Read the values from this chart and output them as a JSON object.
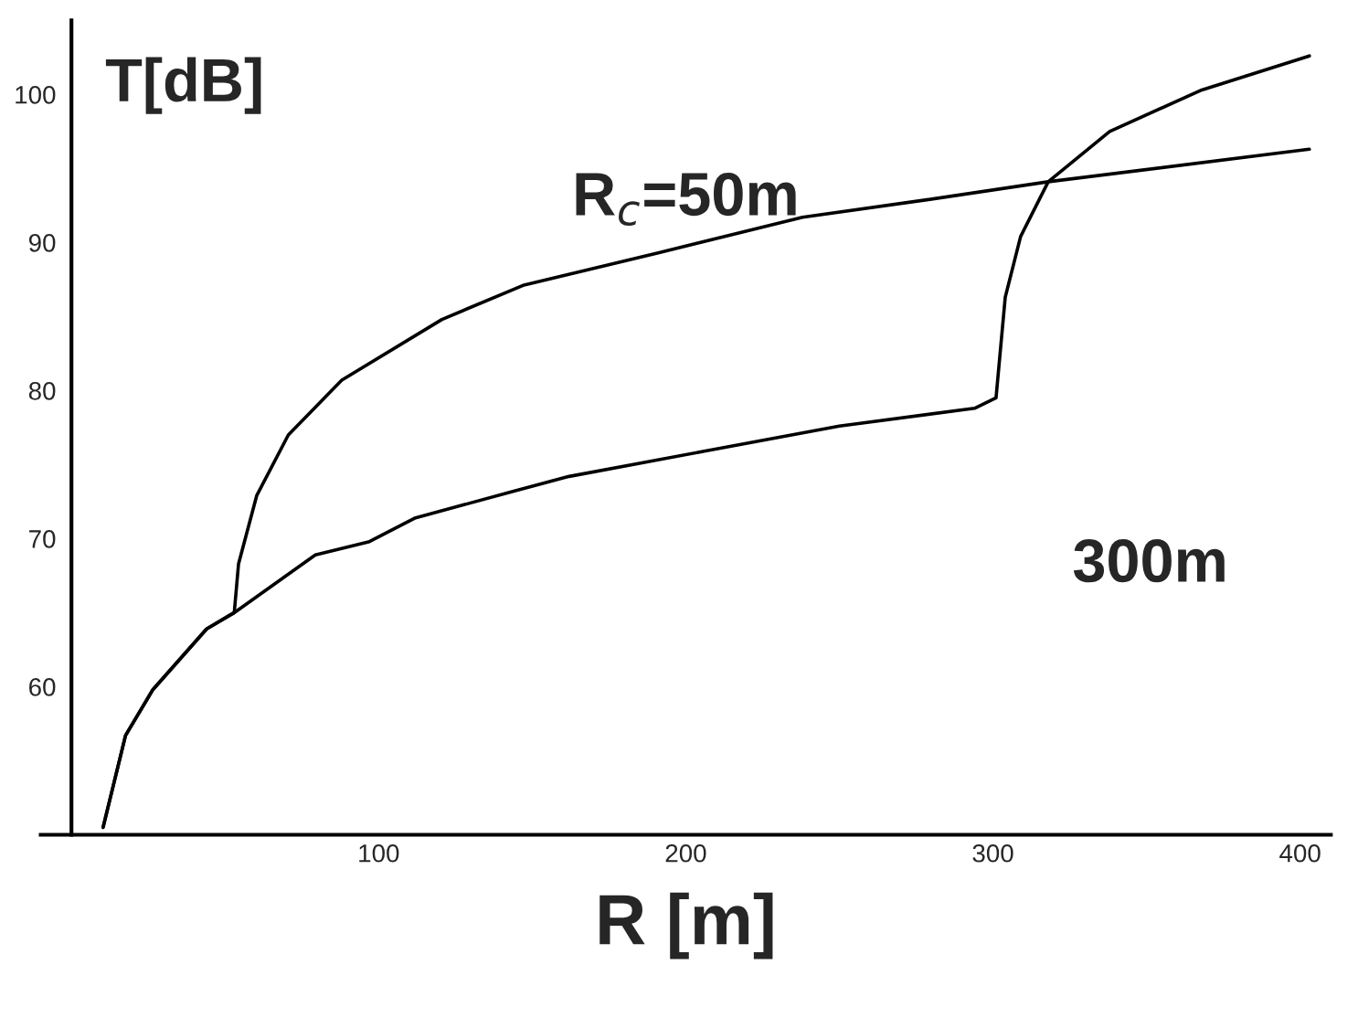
{
  "chart_data": {
    "type": "line",
    "xlabel": "R [m]",
    "ylabel": "T[dB]",
    "xlim": [
      -10,
      410
    ],
    "ylim": [
      50,
      105
    ],
    "xticks": [
      100,
      200,
      300,
      400
    ],
    "yticks": [
      60,
      70,
      80,
      90,
      100
    ],
    "grid": false,
    "legend": false,
    "marker": "none",
    "line_style": "solid",
    "series": [
      {
        "name": "R$_{c}$=50m",
        "color": "#000000",
        "x": [
          10.3,
          17.6,
          26.5,
          44,
          53,
          54.4,
          60.3,
          70.6,
          88,
          120.6,
          147,
          191,
          238,
          279,
          318,
          403
        ],
        "values": [
          50.5,
          56.7,
          59.8,
          63.9,
          65.0,
          68.3,
          72.9,
          77.0,
          80.7,
          84.8,
          87.1,
          89.3,
          91.7,
          92.9,
          94.1,
          96.3
        ]
      },
      {
        "name": "300m",
        "color": "#000000",
        "x": [
          10.3,
          17.6,
          26.5,
          44,
          53,
          79.4,
          97,
          112,
          144,
          162,
          206,
          250,
          294,
          301,
          304,
          309,
          318,
          338,
          368,
          403
        ],
        "values": [
          50.5,
          56.7,
          59.8,
          63.9,
          65.0,
          68.9,
          69.8,
          71.4,
          73.2,
          74.2,
          75.9,
          77.6,
          78.8,
          79.5,
          86.3,
          90.4,
          94.1,
          97.5,
          100.3,
          102.6
        ]
      }
    ]
  }
}
